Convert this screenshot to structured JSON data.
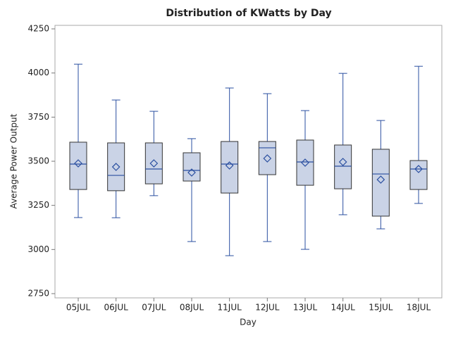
{
  "chart_data": {
    "type": "box",
    "title": "Distribution of KWatts by Day",
    "x_label": "Day",
    "y_label": "Average Power Output",
    "categories": [
      "05JUL",
      "06JUL",
      "07JUL",
      "08JUL",
      "11JUL",
      "12JUL",
      "13JUL",
      "14JUL",
      "15JUL",
      "18JUL"
    ],
    "min": [
      3181,
      3180,
      3305,
      3045,
      2965,
      3045,
      3001,
      3197,
      3117,
      3261
    ],
    "q1": [
      3340,
      3333,
      3372,
      3388,
      3320,
      3424,
      3364,
      3344,
      3189,
      3340
    ],
    "median": [
      3484,
      3420,
      3456,
      3448,
      3484,
      3576,
      3496,
      3472,
      3428,
      3456
    ],
    "q3": [
      3608,
      3604,
      3604,
      3548,
      3612,
      3612,
      3620,
      3592,
      3568,
      3504
    ],
    "max": [
      4050,
      3847,
      3783,
      3628,
      3915,
      3883,
      3787,
      3998,
      3731,
      4038
    ],
    "mean": [
      3488,
      3468,
      3488,
      3436,
      3476,
      3516,
      3492,
      3496,
      3396,
      3456
    ],
    "color": "#cad3e6",
    "line_color": "#2a4fa0",
    "ylim": [
      2726,
      4270
    ],
    "yticks": [
      2750,
      3000,
      3250,
      3500,
      3750,
      4000,
      4250
    ]
  }
}
